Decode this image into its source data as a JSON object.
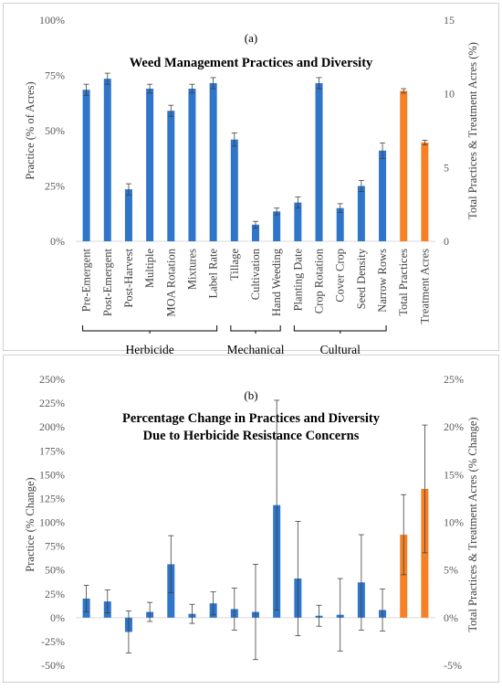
{
  "chart_data": [
    {
      "panel": "(a)",
      "type": "bar",
      "title": "Weed Management Practices and Diversity",
      "ylabel": "Practice (% of Acres)",
      "y2label": "Total Practices & Treatment Acres (%)",
      "ylim": [
        0,
        100
      ],
      "y_ticks": [
        "0%",
        "25%",
        "50%",
        "75%",
        "100%"
      ],
      "y2lim": [
        0,
        15
      ],
      "y2_ticks": [
        "0",
        "5",
        "10",
        "15"
      ],
      "grid": false,
      "categories": [
        "Pre-Emergent",
        "Post-Emergent",
        "Post-Harvest",
        "Multiple",
        "MOA Rotation",
        "Mixtures",
        "Label Rate",
        "Tillage",
        "Cultivation",
        "Hand Weeding",
        "Planting Date",
        "Crop Rotation",
        "Cover Crop",
        "Seed Density",
        "Narrow Rows",
        "Total Practices",
        "Treatment Acres"
      ],
      "values": [
        68.5,
        73.5,
        23.5,
        69,
        59,
        69,
        71.5,
        46,
        7.5,
        13.5,
        17.5,
        71.5,
        15,
        25,
        41,
        10.2,
        6.7
      ],
      "errors": [
        2.5,
        2.5,
        2.5,
        2,
        2.5,
        2,
        2.5,
        3,
        1.5,
        1.5,
        2.5,
        2.5,
        2,
        2.5,
        3.5,
        0.15,
        0.15
      ],
      "axis": [
        "left",
        "left",
        "left",
        "left",
        "left",
        "left",
        "left",
        "left",
        "left",
        "left",
        "left",
        "left",
        "left",
        "left",
        "left",
        "right",
        "right"
      ],
      "groups": [
        {
          "label": "Herbicide",
          "start": 0,
          "end": 6
        },
        {
          "label": "Mechanical",
          "start": 7,
          "end": 9
        },
        {
          "label": "Cultural",
          "start": 10,
          "end": 14
        }
      ],
      "colors": {
        "practice": "#2F75C9",
        "total": "#F58025"
      }
    },
    {
      "panel": "(b)",
      "type": "bar",
      "title_lines": [
        "Percentage Change in Practices and Diversity",
        "Due to Herbicide Resistance Concerns"
      ],
      "ylabel": "Practice (% Change)",
      "y2label": "Total Practices & Treatment Acres (% Change)",
      "ylim": [
        -50,
        250
      ],
      "y_ticks": [
        "-50%",
        "-25%",
        "0%",
        "25%",
        "50%",
        "75%",
        "100%",
        "125%",
        "150%",
        "175%",
        "200%",
        "225%",
        "250%"
      ],
      "y2lim": [
        -5,
        25
      ],
      "y2_ticks": [
        "-5%",
        "0%",
        "5%",
        "10%",
        "15%",
        "20%",
        "25%"
      ],
      "grid": false,
      "values": [
        20,
        17,
        -15,
        6,
        56,
        4,
        15,
        9,
        6,
        118,
        41,
        2,
        3,
        37,
        8,
        8.7,
        13.5
      ],
      "errors": [
        14,
        12,
        22,
        10,
        30,
        10,
        12,
        22,
        50,
        110,
        60,
        11,
        38,
        50,
        22,
        4.2,
        6.7
      ],
      "axis": [
        "left",
        "left",
        "left",
        "left",
        "left",
        "left",
        "left",
        "left",
        "left",
        "left",
        "left",
        "left",
        "left",
        "left",
        "left",
        "right",
        "right"
      ],
      "colors": {
        "practice": "#2F75C9",
        "total": "#F58025"
      }
    }
  ]
}
